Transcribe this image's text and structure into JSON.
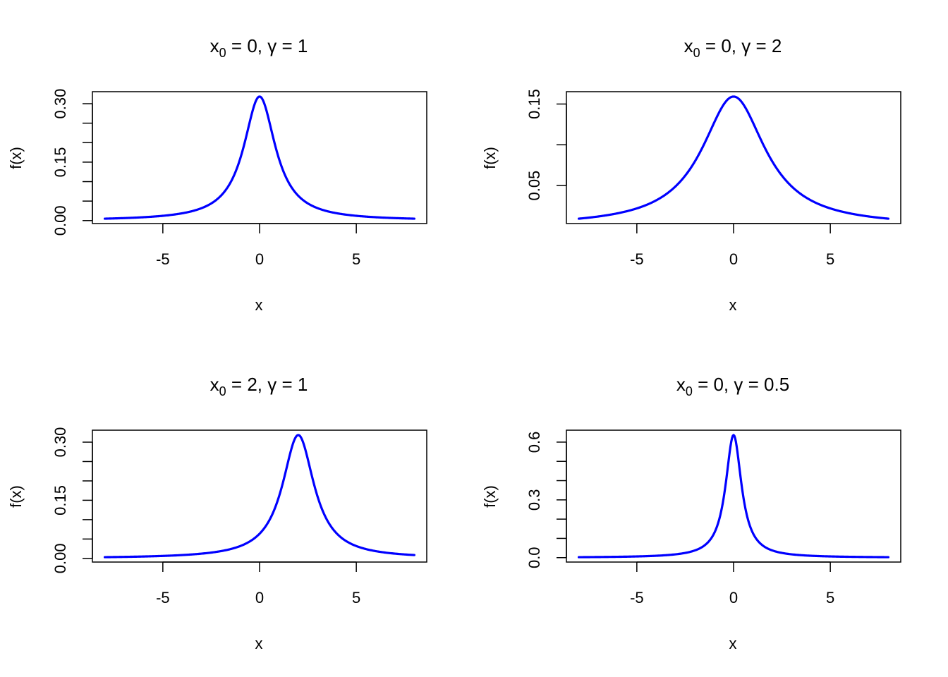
{
  "chart_data": [
    {
      "type": "line",
      "title": {
        "var": "x",
        "sub": "0",
        "rest": " = 0,  γ = 1"
      },
      "params": {
        "x0": 0,
        "gamma": 1
      },
      "x_range": [
        -8,
        8
      ],
      "xlabel": "x",
      "ylabel": "f(x)",
      "x_ticks": [
        -5,
        0,
        5
      ],
      "x_tick_labels": [
        "-5",
        "0",
        "5"
      ],
      "y_ticks": [
        0,
        0.05,
        0.1,
        0.15,
        0.2,
        0.25,
        0.3
      ],
      "y_tick_labels": [
        "0.00",
        "",
        "",
        "0.15",
        "",
        "",
        "0.30"
      ],
      "color": "#0000ff"
    },
    {
      "type": "line",
      "title": {
        "var": "x",
        "sub": "0",
        "rest": " = 0,  γ = 2"
      },
      "params": {
        "x0": 0,
        "gamma": 2
      },
      "x_range": [
        -8,
        8
      ],
      "xlabel": "x",
      "ylabel": "f(x)",
      "x_ticks": [
        -5,
        0,
        5
      ],
      "x_tick_labels": [
        "-5",
        "0",
        "5"
      ],
      "y_ticks": [
        0.05,
        0.1,
        0.15
      ],
      "y_tick_labels": [
        "0.05",
        "",
        "0.15"
      ],
      "color": "#0000ff"
    },
    {
      "type": "line",
      "title": {
        "var": "x",
        "sub": "0",
        "rest": " = 2,  γ = 1"
      },
      "params": {
        "x0": 2,
        "gamma": 1
      },
      "x_range": [
        -8,
        8
      ],
      "xlabel": "x",
      "ylabel": "f(x)",
      "x_ticks": [
        -5,
        0,
        5
      ],
      "x_tick_labels": [
        "-5",
        "0",
        "5"
      ],
      "y_ticks": [
        0,
        0.05,
        0.1,
        0.15,
        0.2,
        0.25,
        0.3
      ],
      "y_tick_labels": [
        "0.00",
        "",
        "",
        "0.15",
        "",
        "",
        "0.30"
      ],
      "color": "#0000ff"
    },
    {
      "type": "line",
      "title": {
        "var": "x",
        "sub": "0",
        "rest": " = 0,  γ = 0.5"
      },
      "params": {
        "x0": 0,
        "gamma": 0.5
      },
      "x_range": [
        -8,
        8
      ],
      "xlabel": "x",
      "ylabel": "f(x)",
      "x_ticks": [
        -5,
        0,
        5
      ],
      "x_tick_labels": [
        "-5",
        "0",
        "5"
      ],
      "y_ticks": [
        0,
        0.1,
        0.2,
        0.3,
        0.4,
        0.5,
        0.6
      ],
      "y_tick_labels": [
        "0.0",
        "",
        "",
        "0.3",
        "",
        "",
        "0.6"
      ],
      "color": "#0000ff"
    }
  ]
}
